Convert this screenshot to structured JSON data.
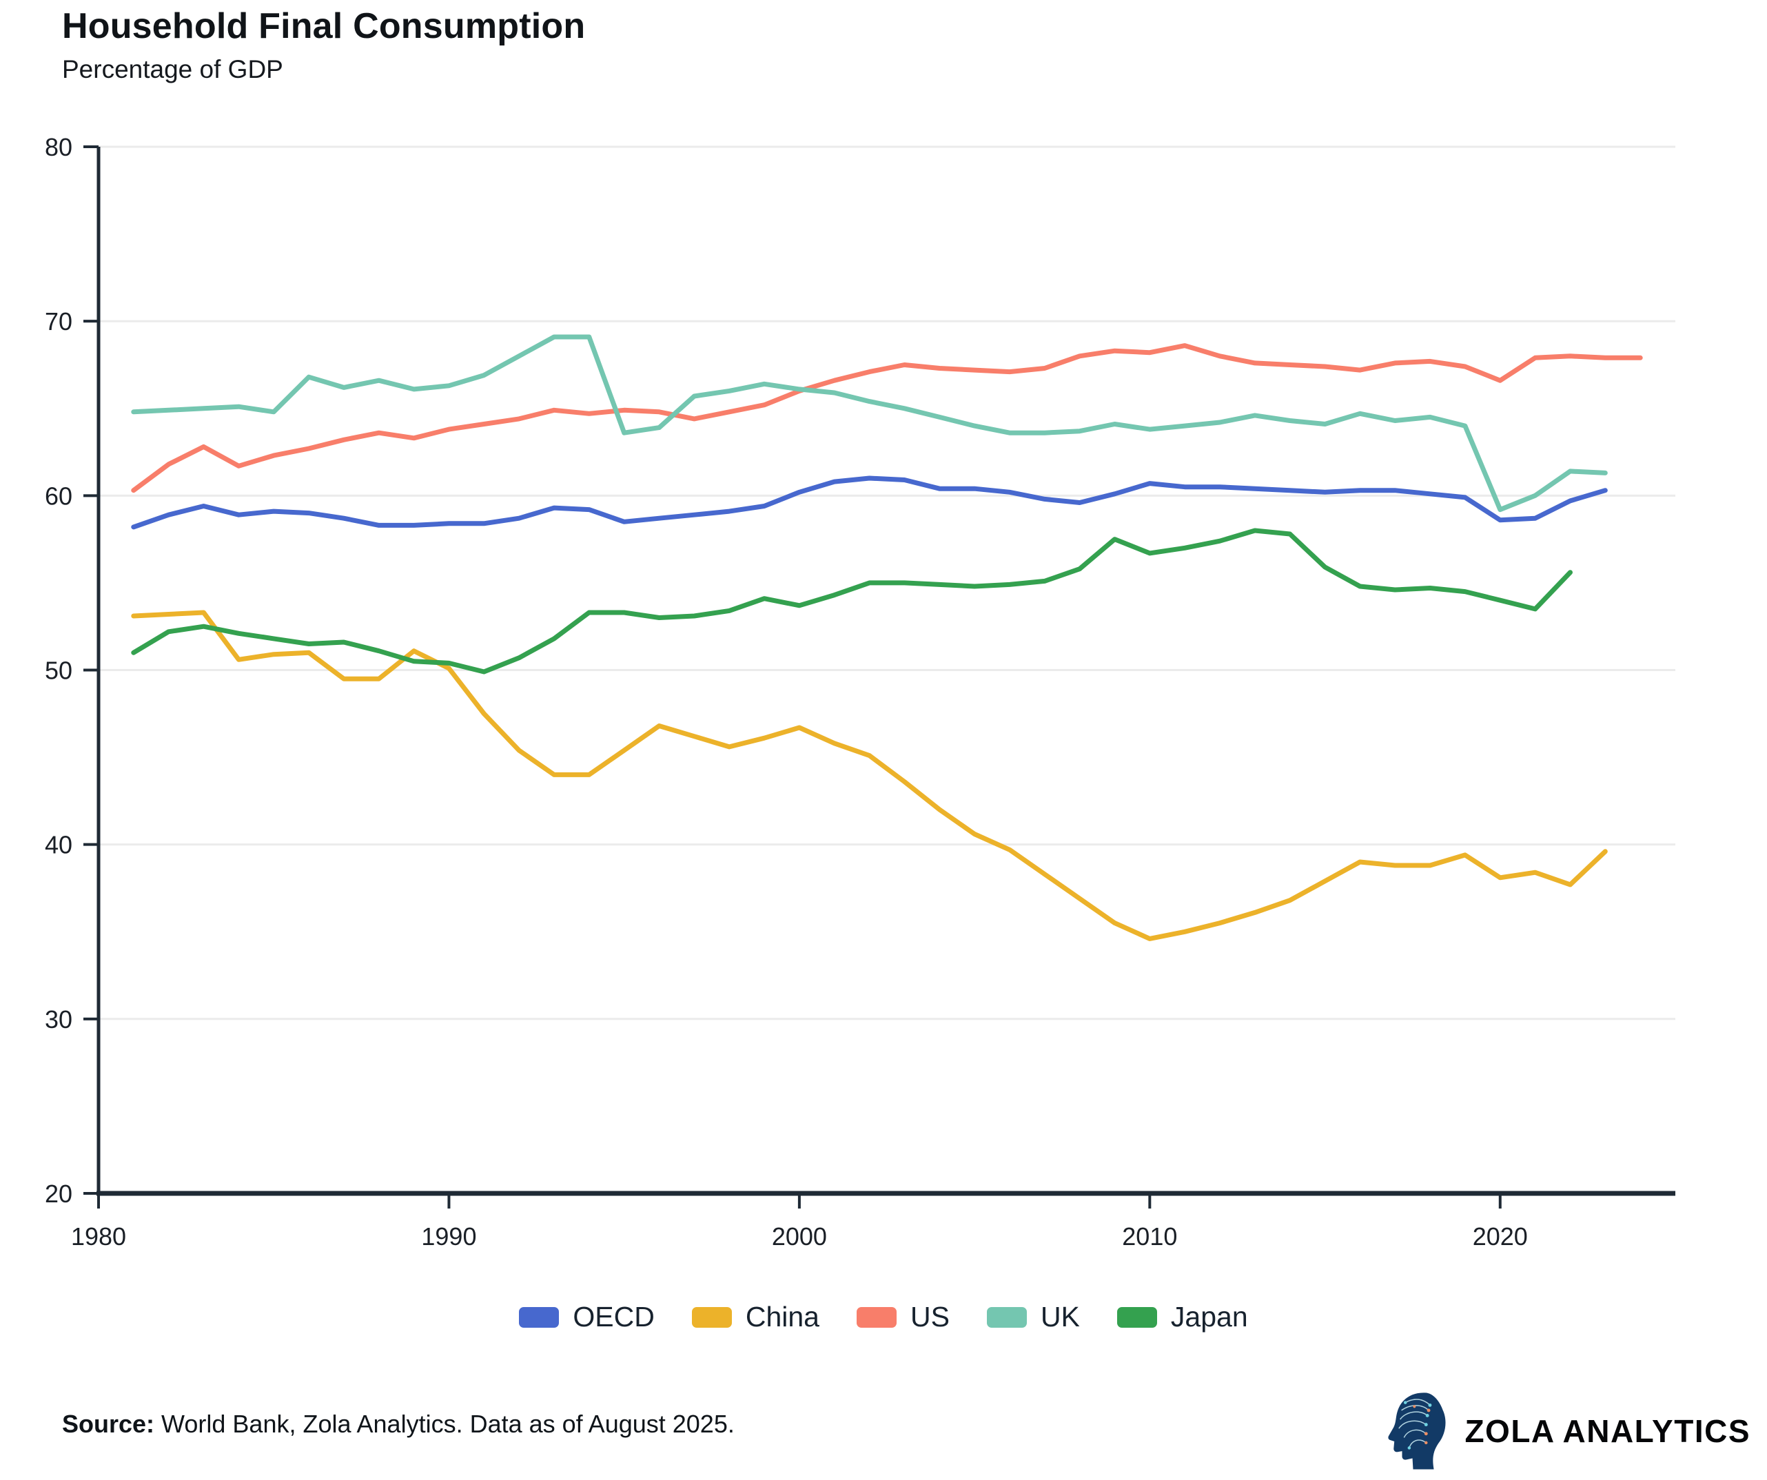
{
  "header": {
    "title": "Household Final Consumption",
    "subtitle": "Percentage of GDP"
  },
  "footer": {
    "source_label": "Source:",
    "source_text": " World Bank, Zola Analytics. Data as of August 2025.",
    "brand": "ZOLA ANALYTICS"
  },
  "colors": {
    "oecd": "#4768ce",
    "china": "#ecb22a",
    "us": "#f87e6a",
    "uk": "#74c6b0",
    "japan": "#34a14f",
    "grid": "#ebebeb",
    "axis": "#1f2a35",
    "logo_navy": "#123a66",
    "logo_teal": "#6fd3e2",
    "logo_salmon": "#e98e64"
  },
  "chart_data": {
    "type": "line",
    "title": "Household Final Consumption",
    "subtitle": "Percentage of GDP",
    "xlabel": "",
    "ylabel": "Percentage of GDP",
    "xlim": [
      1980,
      2025
    ],
    "ylim": [
      20,
      80
    ],
    "x_ticks": [
      1980,
      1990,
      2000,
      2010,
      2020
    ],
    "y_ticks": [
      20,
      30,
      40,
      50,
      60,
      70,
      80
    ],
    "grid": "horizontal-only",
    "legend_position": "bottom-center",
    "series": [
      {
        "name": "OECD",
        "color": "#4768ce",
        "start_year": 1981,
        "values": [
          58.2,
          58.9,
          59.4,
          58.9,
          59.1,
          59.0,
          58.7,
          58.3,
          58.3,
          58.4,
          58.4,
          58.7,
          59.3,
          59.2,
          58.5,
          58.7,
          58.9,
          59.1,
          59.4,
          60.2,
          60.8,
          61.0,
          60.9,
          60.4,
          60.4,
          60.2,
          59.8,
          59.6,
          60.1,
          60.7,
          60.5,
          60.5,
          60.4,
          60.3,
          60.2,
          60.3,
          60.3,
          60.1,
          59.9,
          58.6,
          58.7,
          59.7,
          60.3
        ]
      },
      {
        "name": "China",
        "color": "#ecb22a",
        "start_year": 1981,
        "values": [
          53.1,
          53.2,
          53.3,
          50.6,
          50.9,
          51.0,
          49.5,
          49.5,
          51.1,
          50.1,
          47.5,
          45.4,
          44.0,
          44.0,
          45.4,
          46.8,
          46.2,
          45.6,
          46.1,
          46.7,
          45.8,
          45.1,
          43.6,
          42.0,
          40.6,
          39.7,
          38.3,
          36.9,
          35.5,
          34.6,
          35.0,
          35.5,
          36.1,
          36.8,
          37.9,
          39.0,
          38.8,
          38.8,
          39.4,
          38.1,
          38.4,
          37.7,
          39.6
        ]
      },
      {
        "name": "US",
        "color": "#f87e6a",
        "start_year": 1981,
        "values": [
          60.3,
          61.8,
          62.8,
          61.7,
          62.3,
          62.7,
          63.2,
          63.6,
          63.3,
          63.8,
          64.1,
          64.4,
          64.9,
          64.7,
          64.9,
          64.8,
          64.4,
          64.8,
          65.2,
          66.0,
          66.6,
          67.1,
          67.5,
          67.3,
          67.2,
          67.1,
          67.3,
          68.0,
          68.3,
          68.2,
          68.6,
          68.0,
          67.6,
          67.5,
          67.4,
          67.2,
          67.6,
          67.7,
          67.4,
          66.6,
          67.9,
          68.0,
          67.9,
          67.9
        ]
      },
      {
        "name": "UK",
        "color": "#74c6b0",
        "start_year": 1981,
        "values": [
          64.8,
          64.9,
          65.0,
          65.1,
          64.8,
          66.8,
          66.2,
          66.6,
          66.1,
          66.3,
          66.9,
          68.0,
          69.1,
          69.1,
          63.6,
          63.9,
          65.7,
          66.0,
          66.4,
          66.1,
          65.9,
          65.4,
          65.0,
          64.5,
          64.0,
          63.6,
          63.6,
          63.7,
          64.1,
          63.8,
          64.0,
          64.2,
          64.6,
          64.3,
          64.1,
          64.7,
          64.3,
          64.5,
          64.0,
          59.2,
          60.0,
          61.4,
          61.3
        ]
      },
      {
        "name": "Japan",
        "color": "#34a14f",
        "start_year": 1981,
        "values": [
          51.0,
          52.2,
          52.5,
          52.1,
          51.8,
          51.5,
          51.6,
          51.1,
          50.5,
          50.4,
          49.9,
          50.7,
          51.8,
          53.3,
          53.3,
          53.0,
          53.1,
          53.4,
          54.1,
          53.7,
          54.3,
          55.0,
          55.0,
          54.9,
          54.8,
          54.9,
          55.1,
          55.8,
          57.5,
          56.7,
          57.0,
          57.4,
          58.0,
          57.8,
          55.9,
          54.8,
          54.6,
          54.7,
          54.5,
          54.0,
          53.5,
          55.6
        ]
      }
    ]
  }
}
